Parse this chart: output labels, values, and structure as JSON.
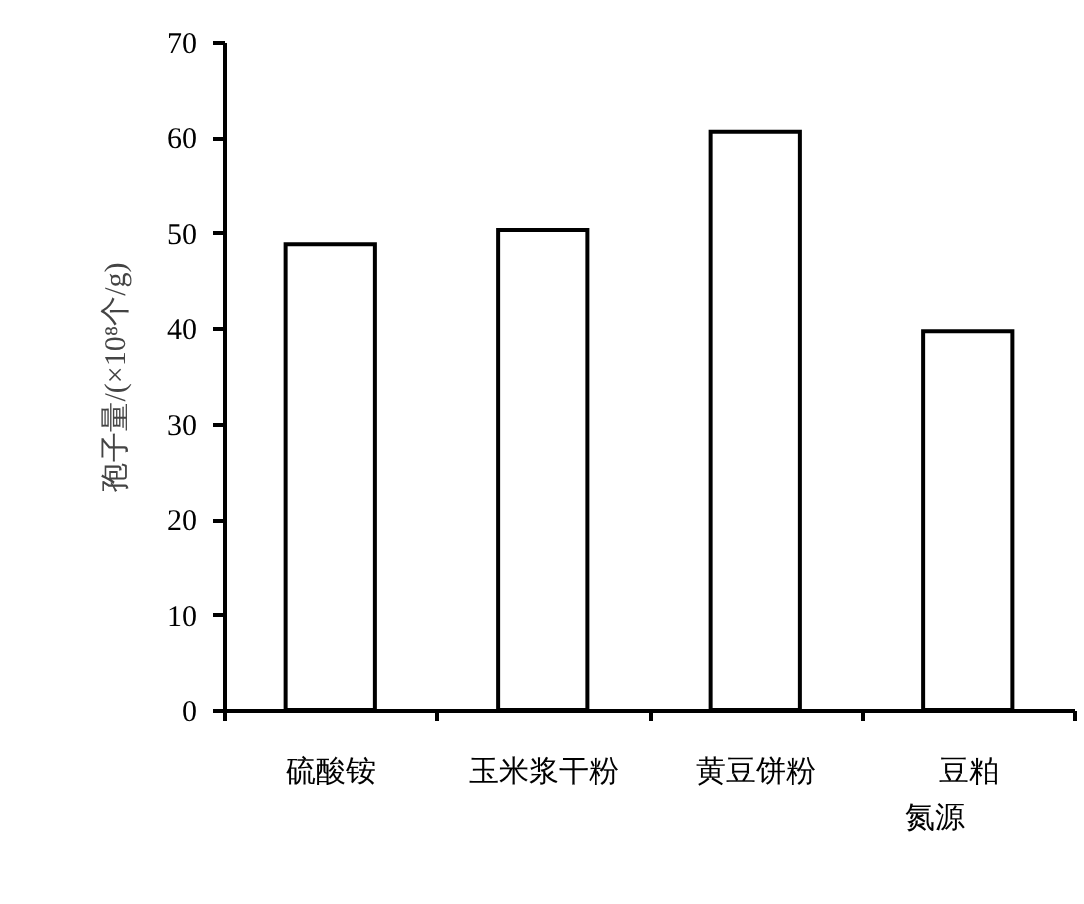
{
  "chart_data": {
    "type": "bar",
    "xlabel": "氮源",
    "ylabel": "孢子量/(×10⁸个/g)",
    "categories": [
      "硫酸铵",
      "玉米浆干粉",
      "黄豆饼粉",
      "豆粕"
    ],
    "values": [
      48.8,
      50.3,
      60.6,
      39.7
    ],
    "color": "#ffffff",
    "ylim": [
      0,
      70
    ],
    "yticks": [
      0,
      10,
      20,
      30,
      40,
      50,
      60,
      70
    ],
    "grid": false
  }
}
